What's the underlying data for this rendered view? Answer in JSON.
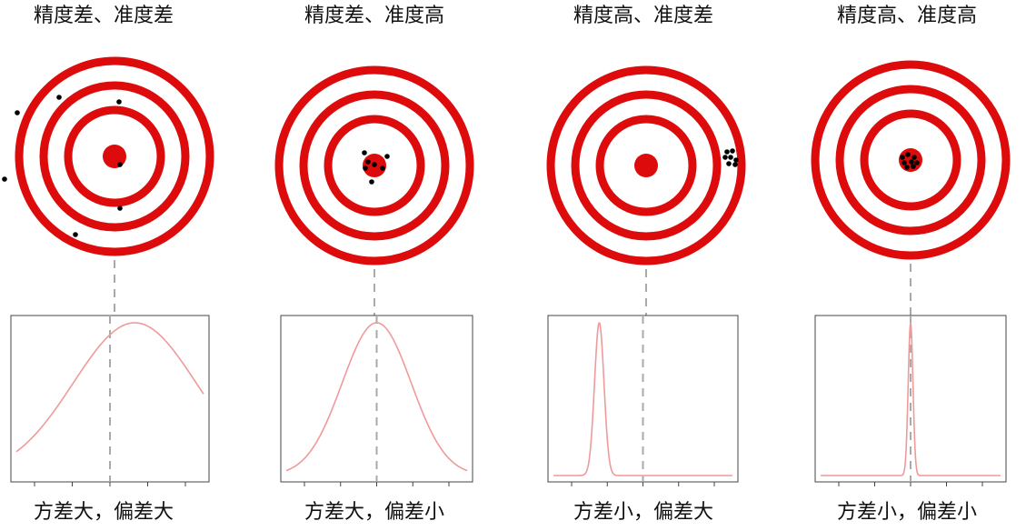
{
  "colors": {
    "ring": "#dd0b0b",
    "dot": "#000000",
    "curve": "#ef9a9a",
    "dash": "#aaaaaa",
    "frame": "#444444"
  },
  "panels": [
    {
      "title": "精度差、准度差",
      "caption": "方差大，偏差大",
      "shots": [
        [
          -107,
          -48
        ],
        [
          -61,
          -65
        ],
        [
          5,
          -60
        ],
        [
          -121,
          25
        ],
        [
          6,
          9
        ],
        [
          6,
          57
        ],
        [
          -43,
          86
        ]
      ],
      "curve": {
        "mean": 0.25,
        "sd": 0.62
      }
    },
    {
      "title": "精度差、准度高",
      "caption": "方差大，偏差小",
      "shots": [
        [
          -11,
          -14
        ],
        [
          14,
          -10
        ],
        [
          -10,
          3
        ],
        [
          0,
          -1
        ],
        [
          9,
          3
        ],
        [
          -3,
          18
        ],
        [
          -7,
          -4
        ]
      ],
      "curve": {
        "mean": 0.0,
        "sd": 0.36
      }
    },
    {
      "title": "精度高、准度差",
      "caption": "方差小，偏差大",
      "shots": [
        [
          89,
          -15
        ],
        [
          95,
          -16
        ],
        [
          87,
          -9
        ],
        [
          93,
          -9
        ],
        [
          99,
          -6
        ],
        [
          91,
          -2
        ],
        [
          98,
          -1
        ]
      ],
      "curve": {
        "mean": -0.46,
        "sd": 0.05
      }
    },
    {
      "title": "精度高、准度高",
      "caption": "方差小，偏差小",
      "shots": [
        [
          -9,
          -3
        ],
        [
          -3,
          -6
        ],
        [
          4,
          -3
        ],
        [
          -7,
          3
        ],
        [
          1,
          2
        ],
        [
          7,
          3
        ],
        [
          -4,
          8
        ],
        [
          3,
          7
        ]
      ],
      "curve": {
        "mean": 0.0,
        "sd": 0.025
      }
    }
  ]
}
